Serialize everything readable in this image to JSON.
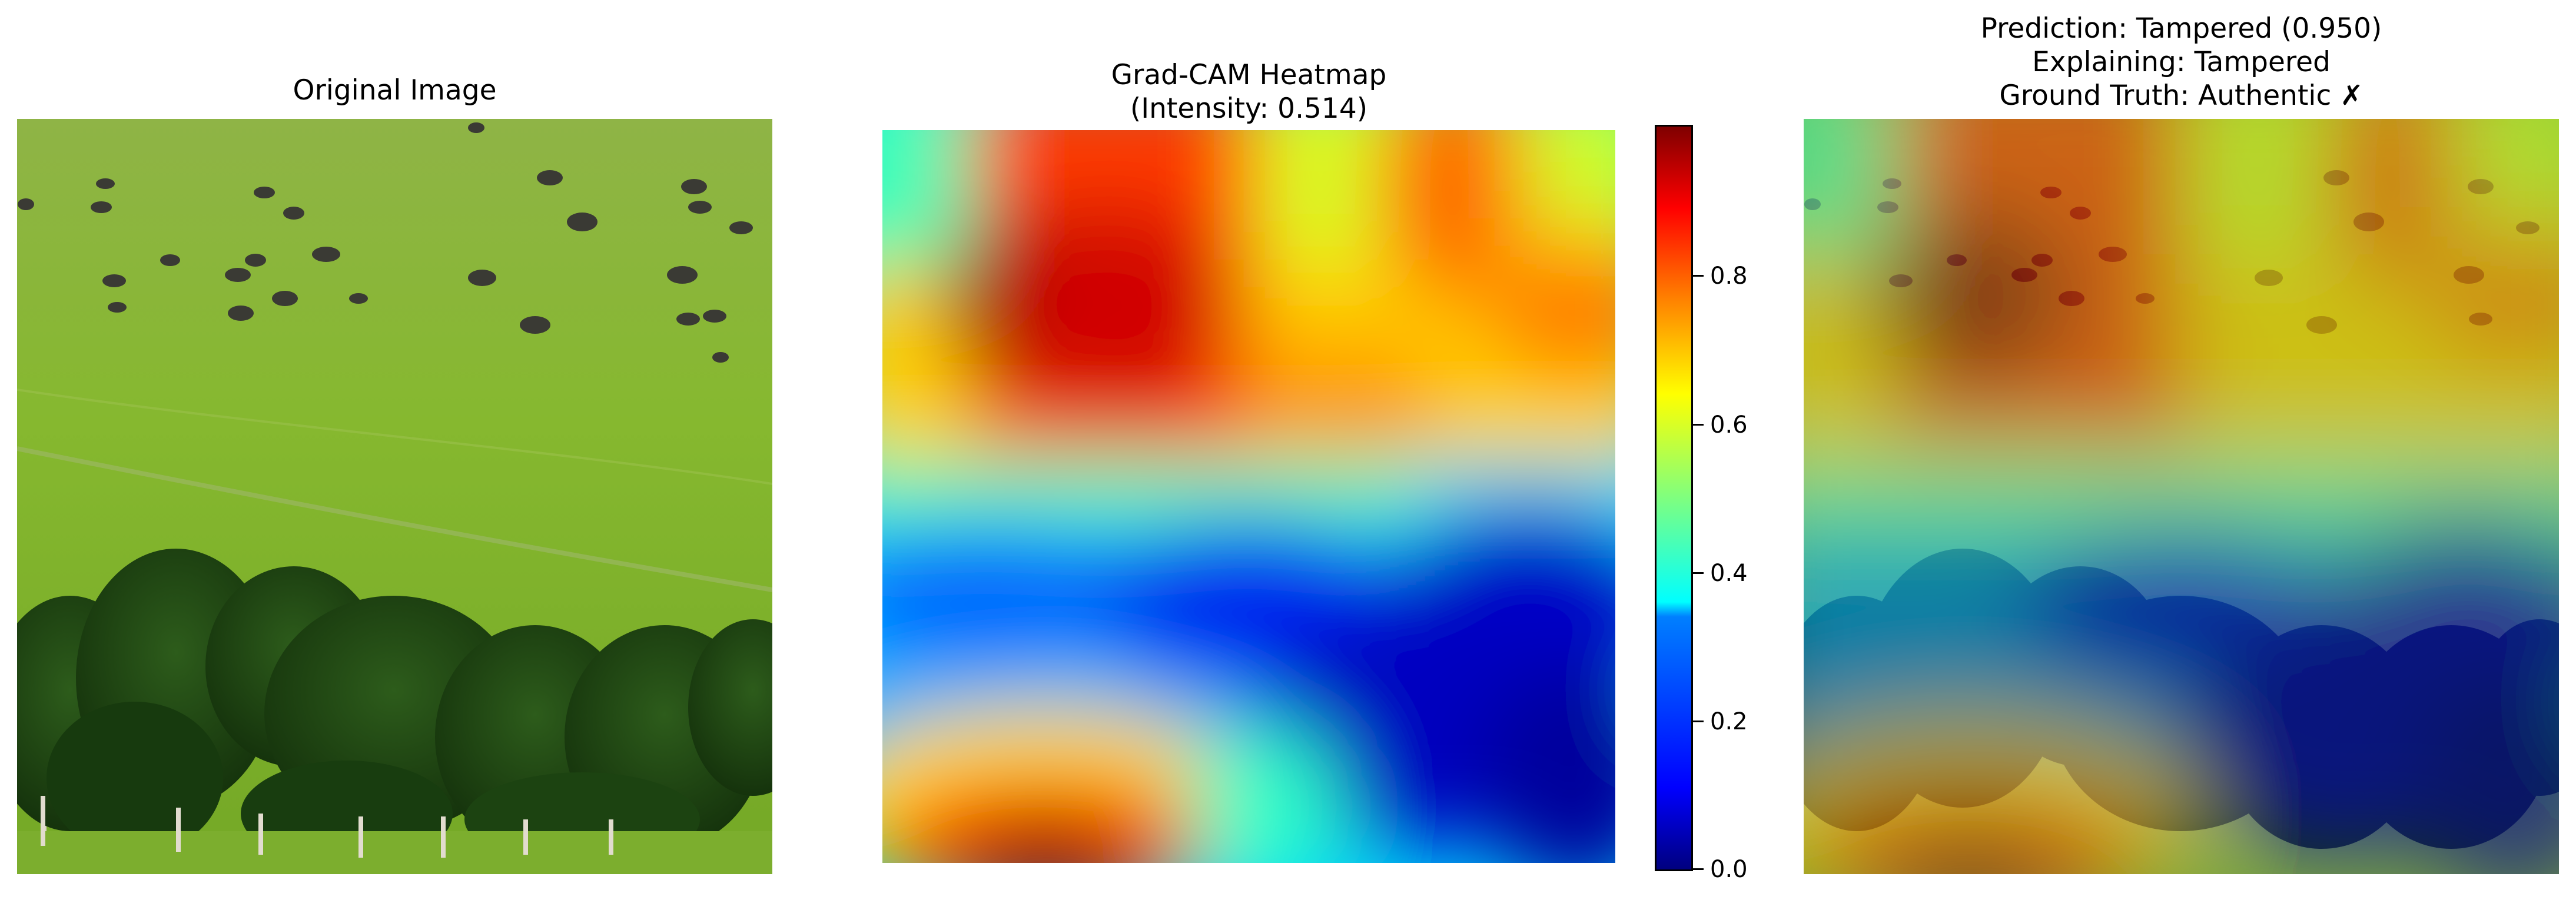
{
  "panels": {
    "original": {
      "title": "Original Image"
    },
    "heatmap": {
      "title_line1": "Grad-CAM Heatmap",
      "title_line2": "(Intensity: 0.514)"
    },
    "overlay": {
      "title_line1": "Prediction: Tampered (0.950)",
      "title_line2": "Explaining: Tampered",
      "title_line3": "Ground Truth: Authentic ✗"
    }
  },
  "colorbar": {
    "colormap": "jet",
    "range": [
      0,
      1
    ],
    "ticks": [
      "0.0",
      "0.2",
      "0.4",
      "0.6",
      "0.8"
    ]
  },
  "colors": {
    "grass": "#86b82f",
    "tree_dark": "#1f4a12",
    "jet_low": "#00007f",
    "jet_high": "#7f0000"
  }
}
